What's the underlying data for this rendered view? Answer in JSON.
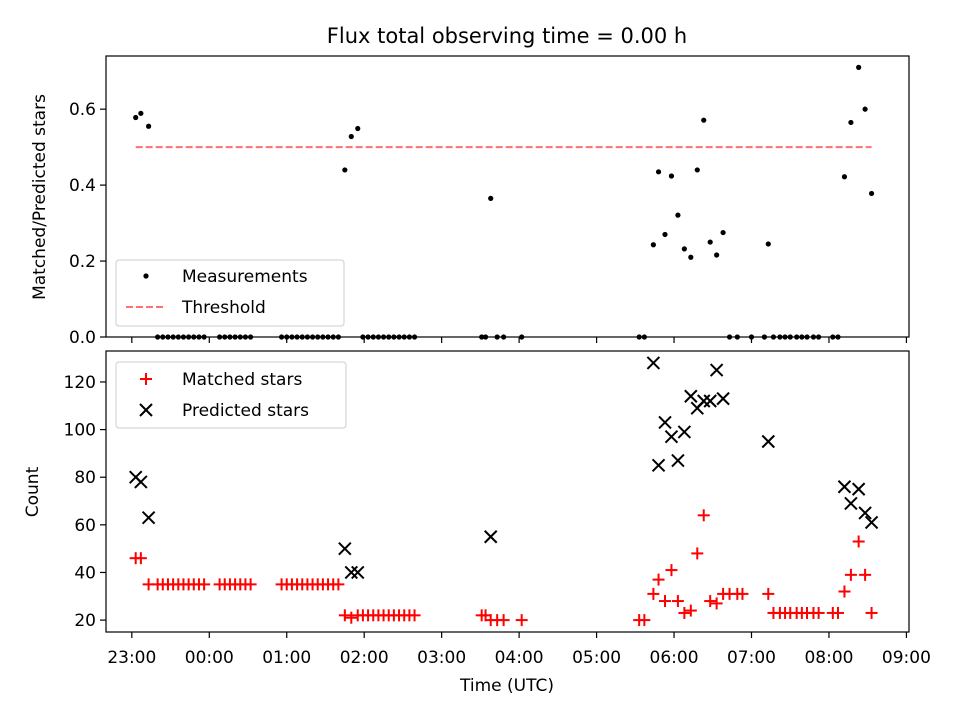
{
  "figure_title": "Flux total observing time = 0.00 h",
  "x_axis_label": "Time (UTC)",
  "x_tick_labels": [
    "23:00",
    "00:00",
    "01:00",
    "02:00",
    "03:00",
    "04:00",
    "05:00",
    "06:00",
    "07:00",
    "08:00",
    "09:00"
  ],
  "colors": {
    "measurements": "#000000",
    "threshold": "#ff7070",
    "matched": "#ff0000",
    "predicted": "#000000"
  },
  "chart_data": [
    {
      "type": "scatter",
      "title": "Flux total observing time = 0.00 h",
      "xlabel": "",
      "ylabel": "Matched/Predicted stars",
      "xlim": [
        "22:40",
        "09:02"
      ],
      "ylim": [
        0,
        0.74
      ],
      "y_ticks": [
        0.0,
        0.2,
        0.4,
        0.6
      ],
      "y_tick_labels": [
        "0.0",
        "0.2",
        "0.4",
        "0.6"
      ],
      "legend_position": "bottom-left",
      "series": [
        {
          "name": "Measurements",
          "marker": "dot",
          "points": [
            [
              "23:03",
              0.578
            ],
            [
              "23:07",
              0.589
            ],
            [
              "23:13",
              0.555
            ],
            [
              "23:20",
              0
            ],
            [
              "23:24",
              0
            ],
            [
              "23:28",
              0
            ],
            [
              "23:32",
              0
            ],
            [
              "23:36",
              0
            ],
            [
              "23:40",
              0
            ],
            [
              "23:44",
              0
            ],
            [
              "23:48",
              0
            ],
            [
              "23:52",
              0
            ],
            [
              "23:56",
              0
            ],
            [
              "00:08",
              0
            ],
            [
              "00:12",
              0
            ],
            [
              "00:16",
              0
            ],
            [
              "00:20",
              0
            ],
            [
              "00:24",
              0
            ],
            [
              "00:28",
              0
            ],
            [
              "00:32",
              0
            ],
            [
              "00:56",
              0
            ],
            [
              "01:00",
              0
            ],
            [
              "01:04",
              0
            ],
            [
              "01:08",
              0
            ],
            [
              "01:12",
              0
            ],
            [
              "01:16",
              0
            ],
            [
              "01:20",
              0
            ],
            [
              "01:24",
              0
            ],
            [
              "01:28",
              0
            ],
            [
              "01:32",
              0
            ],
            [
              "01:36",
              0
            ],
            [
              "01:40",
              0
            ],
            [
              "01:45",
              0.44
            ],
            [
              "01:50",
              0.528
            ],
            [
              "01:55",
              0.549
            ],
            [
              "01:59",
              0
            ],
            [
              "02:03",
              0
            ],
            [
              "02:07",
              0
            ],
            [
              "02:11",
              0
            ],
            [
              "02:15",
              0
            ],
            [
              "02:19",
              0
            ],
            [
              "02:23",
              0
            ],
            [
              "02:27",
              0
            ],
            [
              "02:31",
              0
            ],
            [
              "02:35",
              0
            ],
            [
              "02:39",
              0
            ],
            [
              "03:31",
              0
            ],
            [
              "03:34",
              0
            ],
            [
              "03:38",
              0.365
            ],
            [
              "03:43",
              0
            ],
            [
              "03:48",
              0
            ],
            [
              "04:02",
              0
            ],
            [
              "05:33",
              0
            ],
            [
              "05:37",
              0
            ],
            [
              "05:44",
              0.243
            ],
            [
              "05:48",
              0.435
            ],
            [
              "05:53",
              0.27
            ],
            [
              "05:58",
              0.424
            ],
            [
              "06:03",
              0.321
            ],
            [
              "06:08",
              0.232
            ],
            [
              "06:13",
              0.21
            ],
            [
              "06:18",
              0.44
            ],
            [
              "06:23",
              0.571
            ],
            [
              "06:28",
              0.25
            ],
            [
              "06:33",
              0.216
            ],
            [
              "06:38",
              0.275
            ],
            [
              "06:43",
              0
            ],
            [
              "06:49",
              0
            ],
            [
              "07:00",
              0
            ],
            [
              "07:10",
              0
            ],
            [
              "07:13",
              0.245
            ],
            [
              "07:17",
              0
            ],
            [
              "07:22",
              0
            ],
            [
              "07:26",
              0
            ],
            [
              "07:30",
              0
            ],
            [
              "07:35",
              0
            ],
            [
              "07:39",
              0
            ],
            [
              "07:43",
              0
            ],
            [
              "07:48",
              0
            ],
            [
              "07:52",
              0
            ],
            [
              "08:03",
              0
            ],
            [
              "08:07",
              0
            ],
            [
              "08:12",
              0.422
            ],
            [
              "08:17",
              0.565
            ],
            [
              "08:23",
              0.71
            ],
            [
              "08:28",
              0.6
            ],
            [
              "08:33",
              0.378
            ]
          ]
        },
        {
          "name": "Threshold",
          "marker": "dashed-line",
          "points": [
            [
              "23:03",
              0.5
            ],
            [
              "08:33",
              0.5
            ]
          ]
        }
      ]
    },
    {
      "type": "scatter",
      "title": "",
      "xlabel": "Time (UTC)",
      "ylabel": "Count",
      "xlim": [
        "22:40",
        "09:02"
      ],
      "ylim": [
        15,
        133
      ],
      "y_ticks": [
        20,
        40,
        60,
        80,
        100,
        120
      ],
      "y_tick_labels": [
        "20",
        "40",
        "60",
        "80",
        "100",
        "120"
      ],
      "legend_position": "top-left",
      "series": [
        {
          "name": "Matched stars",
          "marker": "plus",
          "points": [
            [
              "23:03",
              46
            ],
            [
              "23:07",
              46
            ],
            [
              "23:13",
              35
            ],
            [
              "23:20",
              35
            ],
            [
              "23:24",
              35
            ],
            [
              "23:28",
              35
            ],
            [
              "23:32",
              35
            ],
            [
              "23:36",
              35
            ],
            [
              "23:40",
              35
            ],
            [
              "23:44",
              35
            ],
            [
              "23:48",
              35
            ],
            [
              "23:52",
              35
            ],
            [
              "23:56",
              35
            ],
            [
              "00:08",
              35
            ],
            [
              "00:12",
              35
            ],
            [
              "00:16",
              35
            ],
            [
              "00:20",
              35
            ],
            [
              "00:24",
              35
            ],
            [
              "00:28",
              35
            ],
            [
              "00:32",
              35
            ],
            [
              "00:56",
              35
            ],
            [
              "01:00",
              35
            ],
            [
              "01:04",
              35
            ],
            [
              "01:08",
              35
            ],
            [
              "01:12",
              35
            ],
            [
              "01:16",
              35
            ],
            [
              "01:20",
              35
            ],
            [
              "01:24",
              35
            ],
            [
              "01:28",
              35
            ],
            [
              "01:32",
              35
            ],
            [
              "01:36",
              35
            ],
            [
              "01:40",
              35
            ],
            [
              "01:45",
              22
            ],
            [
              "01:50",
              21
            ],
            [
              "01:55",
              22
            ],
            [
              "01:59",
              22
            ],
            [
              "02:03",
              22
            ],
            [
              "02:07",
              22
            ],
            [
              "02:11",
              22
            ],
            [
              "02:15",
              22
            ],
            [
              "02:19",
              22
            ],
            [
              "02:23",
              22
            ],
            [
              "02:27",
              22
            ],
            [
              "02:31",
              22
            ],
            [
              "02:35",
              22
            ],
            [
              "02:39",
              22
            ],
            [
              "03:31",
              22
            ],
            [
              "03:34",
              22
            ],
            [
              "03:38",
              20
            ],
            [
              "03:43",
              20
            ],
            [
              "03:48",
              20
            ],
            [
              "04:02",
              20
            ],
            [
              "05:33",
              20
            ],
            [
              "05:37",
              20
            ],
            [
              "05:44",
              31
            ],
            [
              "05:48",
              37
            ],
            [
              "05:53",
              28
            ],
            [
              "05:58",
              41
            ],
            [
              "06:03",
              28
            ],
            [
              "06:08",
              23
            ],
            [
              "06:13",
              24
            ],
            [
              "06:18",
              48
            ],
            [
              "06:23",
              64
            ],
            [
              "06:28",
              28
            ],
            [
              "06:33",
              27
            ],
            [
              "06:38",
              31
            ],
            [
              "06:43",
              31
            ],
            [
              "06:49",
              31
            ],
            [
              "06:53",
              31
            ],
            [
              "07:13",
              31
            ],
            [
              "07:17",
              23
            ],
            [
              "07:22",
              23
            ],
            [
              "07:26",
              23
            ],
            [
              "07:30",
              23
            ],
            [
              "07:35",
              23
            ],
            [
              "07:39",
              23
            ],
            [
              "07:43",
              23
            ],
            [
              "07:48",
              23
            ],
            [
              "07:52",
              23
            ],
            [
              "08:03",
              23
            ],
            [
              "08:07",
              23
            ],
            [
              "08:12",
              32
            ],
            [
              "08:17",
              39
            ],
            [
              "08:23",
              53
            ],
            [
              "08:28",
              39
            ],
            [
              "08:33",
              23
            ]
          ]
        },
        {
          "name": "Predicted stars",
          "marker": "x",
          "points": [
            [
              "23:03",
              80
            ],
            [
              "23:07",
              78
            ],
            [
              "23:13",
              63
            ],
            [
              "01:45",
              50
            ],
            [
              "01:50",
              40
            ],
            [
              "01:55",
              40
            ],
            [
              "03:38",
              55
            ],
            [
              "05:44",
              128
            ],
            [
              "05:48",
              85
            ],
            [
              "05:53",
              103
            ],
            [
              "05:58",
              97
            ],
            [
              "06:03",
              87
            ],
            [
              "06:08",
              99
            ],
            [
              "06:13",
              114
            ],
            [
              "06:18",
              109
            ],
            [
              "06:23",
              112
            ],
            [
              "06:28",
              112
            ],
            [
              "06:33",
              125
            ],
            [
              "06:38",
              113
            ],
            [
              "07:13",
              95
            ],
            [
              "08:12",
              76
            ],
            [
              "08:17",
              69
            ],
            [
              "08:23",
              75
            ],
            [
              "08:28",
              65
            ],
            [
              "08:33",
              61
            ]
          ]
        }
      ]
    }
  ]
}
